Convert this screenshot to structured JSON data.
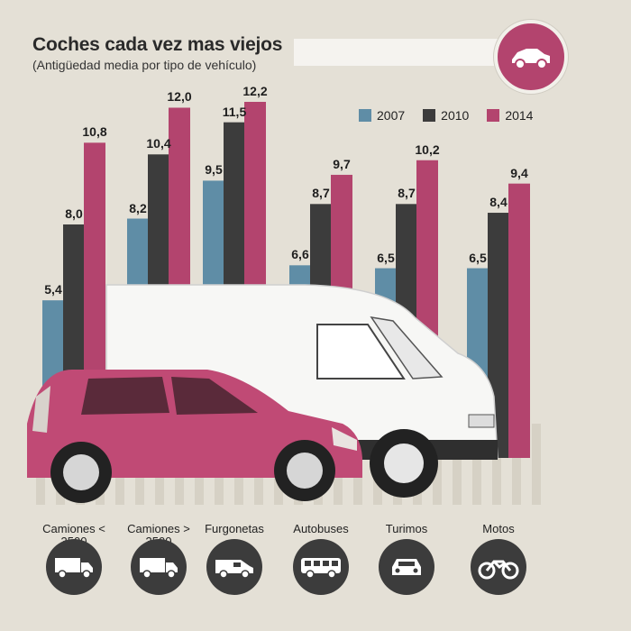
{
  "title": "Coches cada vez mas viejos",
  "subtitle": "(Antigüedad media por tipo de vehículo)",
  "colors": {
    "2007": "#5f8da6",
    "2010": "#3c3c3c",
    "2014": "#b3446e",
    "background": "#e4e0d6"
  },
  "icons": {
    "badge": "car-sedan-icon",
    "categories": [
      "truck-icon",
      "truck-icon",
      "van-icon",
      "bus-icon",
      "car-icon",
      "motorcycle-icon"
    ]
  },
  "chart_data": {
    "type": "bar",
    "categories": [
      "Camiones <\n3500",
      "Camiones >\n3500",
      "Furgonetas",
      "Autobuses",
      "Turimos",
      "Motos"
    ],
    "series": [
      {
        "name": "2007",
        "values": [
          5.4,
          8.2,
          9.5,
          6.6,
          6.5,
          6.5
        ],
        "labels": [
          "5,4",
          "8,2",
          "9,5",
          "6,6",
          "6,5",
          "6,5"
        ]
      },
      {
        "name": "2010",
        "values": [
          8.0,
          10.4,
          11.5,
          8.7,
          8.7,
          8.4
        ],
        "labels": [
          "8,0",
          "10,4",
          "11,5",
          "8,7",
          "8,7",
          "8,4"
        ]
      },
      {
        "name": "2014",
        "values": [
          10.8,
          12.0,
          12.2,
          9.7,
          10.2,
          9.4
        ],
        "labels": [
          "10,8",
          "12,0",
          "12,2",
          "9,7",
          "10,2",
          "9,4"
        ]
      }
    ],
    "legend_position": "top-right",
    "grid": false
  }
}
